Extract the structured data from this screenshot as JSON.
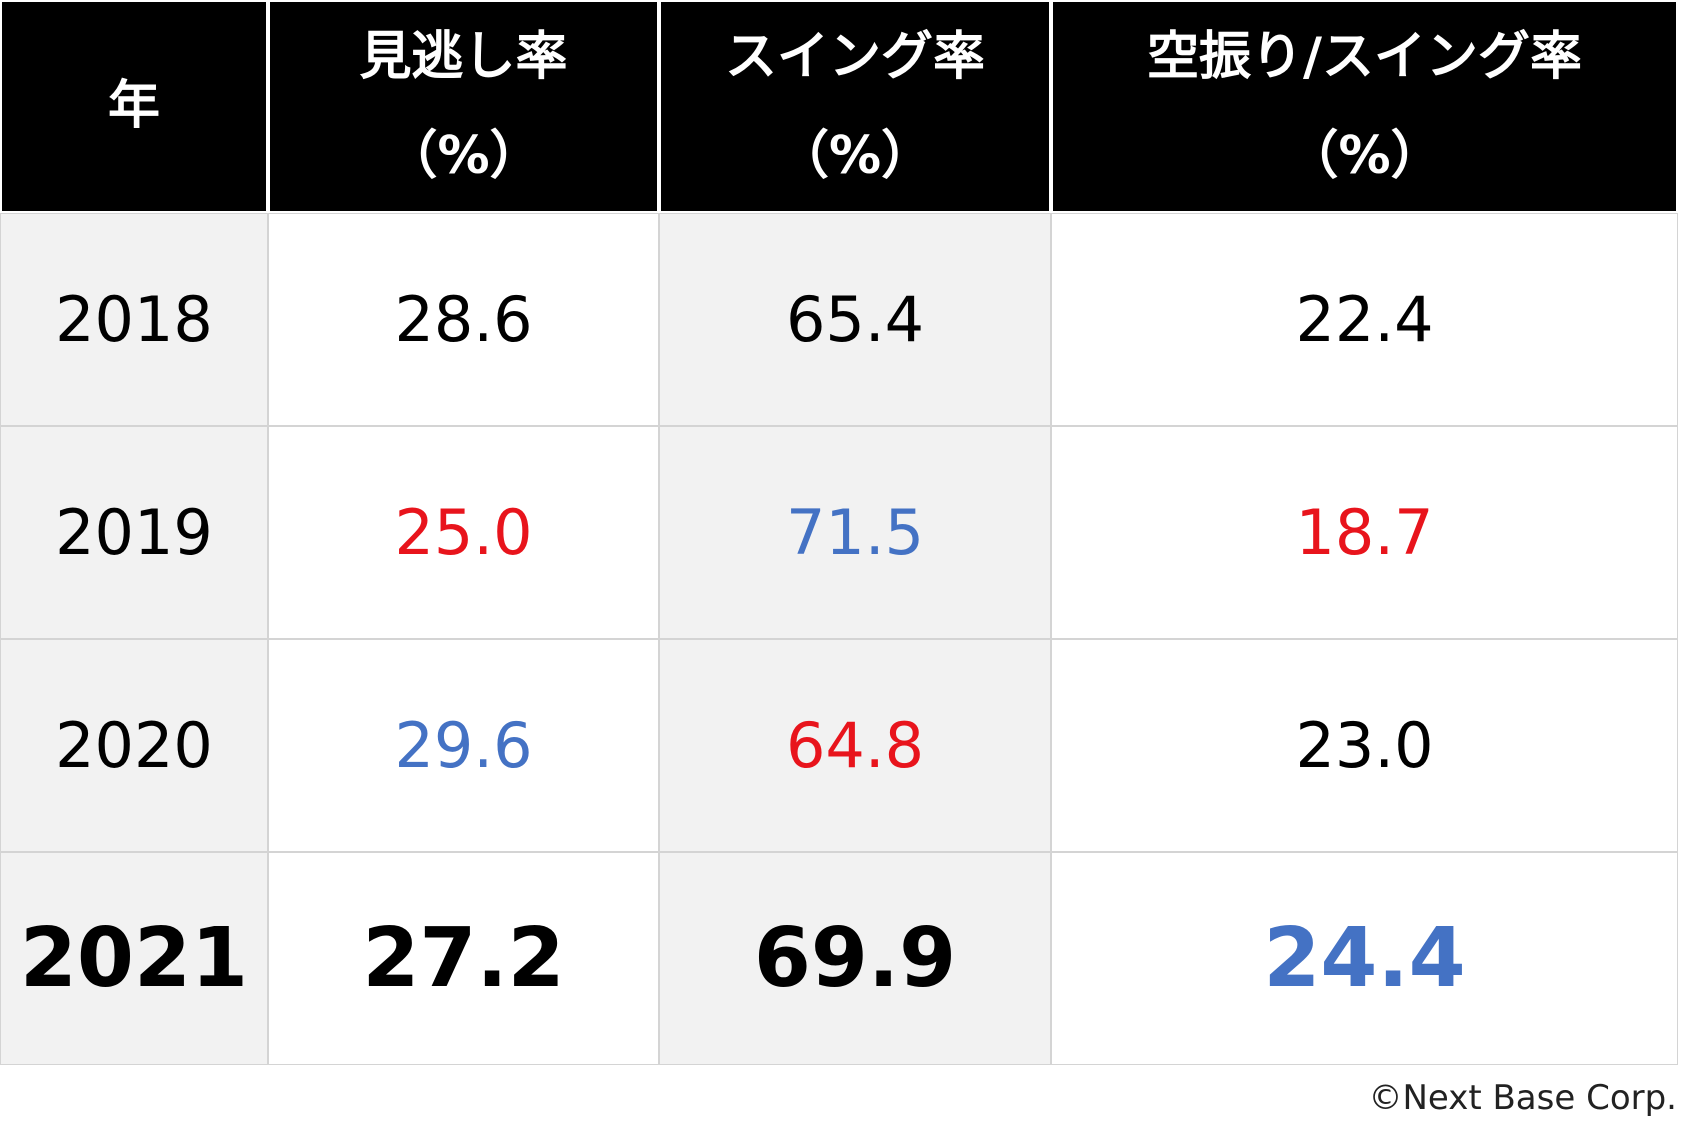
{
  "table": {
    "header": [
      {
        "title": "年"
      },
      {
        "title": "見逃し率",
        "unit": "（%）"
      },
      {
        "title": "スイング率",
        "unit": "（%）"
      },
      {
        "title": "空振り/スイング率",
        "unit": "（%）"
      }
    ],
    "rows": [
      {
        "cells": [
          "2018",
          "28.6",
          "65.4",
          "22.4"
        ],
        "colors": [
          "#000000",
          "#000000",
          "#000000",
          "#000000"
        ]
      },
      {
        "cells": [
          "2019",
          "25.0",
          "71.5",
          "18.7"
        ],
        "colors": [
          "#000000",
          "#e8141c",
          "#4472c4",
          "#e8141c"
        ]
      },
      {
        "cells": [
          "2020",
          "29.6",
          "64.8",
          "23.0"
        ],
        "colors": [
          "#000000",
          "#4472c4",
          "#e8141c",
          "#000000"
        ]
      },
      {
        "cells": [
          "2021",
          "27.2",
          "69.9",
          "24.4"
        ],
        "colors": [
          "#000000",
          "#000000",
          "#000000",
          "#4472c4"
        ],
        "emphasis": true
      }
    ]
  },
  "footer": "©Next Base Corp."
}
